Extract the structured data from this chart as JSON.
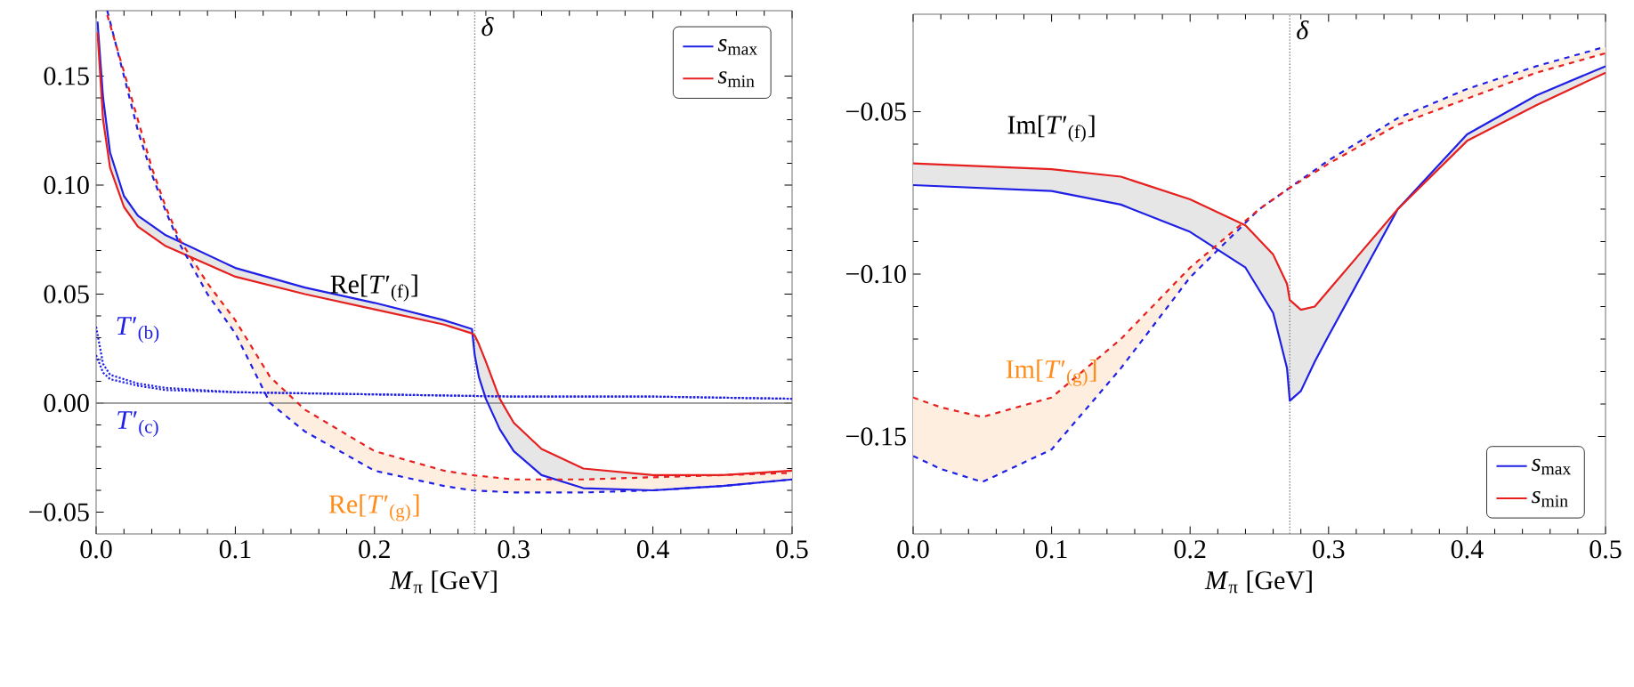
{
  "chart_data": [
    {
      "type": "line",
      "xlabel": "*M*$_{π}$ [GeV]",
      "xlim": [
        0,
        0.5
      ],
      "ylim": [
        -0.06,
        0.18
      ],
      "xticks": [
        {
          "value": 0,
          "label": "0.0"
        },
        0.1,
        0.2,
        0.3,
        0.4,
        0.5
      ],
      "yticks": [
        {
          "value": -0.05,
          "label": "−0.05"
        },
        {
          "value": 0,
          "label": "0.00"
        },
        0.05,
        {
          "value": 0.1,
          "label": "0.10"
        },
        0.15
      ],
      "legend": "top right",
      "grid": false,
      "series": [
        {
          "name": "*s*$_{max}$",
          "color": "#1f1fe6",
          "line_style": "solid",
          "x": [
            0.001,
            0.005,
            0.01,
            0.02,
            0.03,
            0.05,
            0.1,
            0.15,
            0.2,
            0.25,
            0.27,
            0.272,
            0.275,
            0.28,
            0.29,
            0.3,
            0.32,
            0.35,
            0.4,
            0.45,
            0.5
          ],
          "values": [
            0.175,
            0.14,
            0.115,
            0.095,
            0.086,
            0.077,
            0.062,
            0.053,
            0.046,
            0.038,
            0.034,
            0.022,
            0.012,
            0.002,
            -0.012,
            -0.022,
            -0.033,
            -0.039,
            -0.04,
            -0.038,
            -0.035
          ],
          "upper": [
            0.175,
            0.14,
            0.115,
            0.095,
            0.086,
            0.077,
            0.062,
            0.053,
            0.046,
            0.038,
            0.034,
            0.031,
            0.027,
            0.019,
            0.002,
            -0.009,
            -0.021,
            -0.03,
            -0.033,
            -0.033,
            -0.031
          ],
          "lower": [
            0.17,
            0.13,
            0.108,
            0.09,
            0.081,
            0.072,
            0.058,
            0.05,
            0.043,
            0.036,
            0.032,
            0.022,
            0.012,
            0.002,
            -0.012,
            -0.022,
            -0.033,
            -0.039,
            -0.04,
            -0.038,
            -0.035
          ]
        },
        {
          "name": "*s*$_{min}$",
          "color": "#e61f1f",
          "line_style": "solid",
          "x": [
            0.001,
            0.005,
            0.01,
            0.02,
            0.03,
            0.05,
            0.1,
            0.15,
            0.2,
            0.25,
            0.27,
            0.272,
            0.275,
            0.28,
            0.29,
            0.3,
            0.32,
            0.35,
            0.4,
            0.45,
            0.5
          ],
          "values": [
            0.17,
            0.13,
            0.108,
            0.09,
            0.081,
            0.072,
            0.058,
            0.05,
            0.043,
            0.036,
            0.032,
            0.031,
            0.027,
            0.019,
            0.002,
            -0.009,
            -0.021,
            -0.03,
            -0.033,
            -0.033,
            -0.031
          ]
        },
        {
          "color": "#1f1fe6",
          "line_style": "dashed",
          "x": [
            0.008,
            0.02,
            0.03,
            0.04,
            0.05,
            0.06,
            0.08,
            0.1,
            0.125,
            0.15,
            0.2,
            0.25,
            0.27,
            0.3,
            0.35,
            0.4,
            0.45,
            0.5
          ],
          "values": [
            0.18,
            0.15,
            0.125,
            0.105,
            0.088,
            0.073,
            0.05,
            0.032,
            0.0,
            -0.013,
            -0.031,
            -0.038,
            -0.04,
            -0.041,
            -0.041,
            -0.04,
            -0.038,
            -0.035
          ],
          "upper": [
            0.178,
            0.152,
            0.13,
            0.108,
            0.09,
            0.075,
            0.055,
            0.038,
            0.012,
            -0.003,
            -0.022,
            -0.031,
            -0.033,
            -0.035,
            -0.035,
            -0.034,
            -0.033,
            -0.032
          ],
          "lower": [
            0.18,
            0.15,
            0.125,
            0.105,
            0.088,
            0.073,
            0.05,
            0.032,
            0.0,
            -0.013,
            -0.031,
            -0.038,
            -0.04,
            -0.041,
            -0.041,
            -0.04,
            -0.038,
            -0.035
          ]
        },
        {
          "color": "#e61f1f",
          "line_style": "dashed",
          "x": [
            0.008,
            0.02,
            0.03,
            0.04,
            0.05,
            0.06,
            0.08,
            0.1,
            0.125,
            0.15,
            0.2,
            0.25,
            0.27,
            0.3,
            0.35,
            0.4,
            0.45,
            0.5
          ],
          "values": [
            0.178,
            0.152,
            0.13,
            0.108,
            0.09,
            0.075,
            0.055,
            0.038,
            0.012,
            -0.003,
            -0.022,
            -0.031,
            -0.033,
            -0.035,
            -0.035,
            -0.034,
            -0.033,
            -0.032
          ]
        },
        {
          "color": "#1f1fe6",
          "line_style": "dotted",
          "x": [
            0.0,
            0.005,
            0.01,
            0.03,
            0.05,
            0.1,
            0.2,
            0.3,
            0.4,
            0.5
          ],
          "values": [
            0.035,
            0.018,
            0.013,
            0.009,
            0.007,
            0.005,
            0.004,
            0.003,
            0.003,
            0.002
          ]
        },
        {
          "color": "#1f1fe6",
          "line_style": "dotted",
          "x": [
            0.0,
            0.005,
            0.01,
            0.03,
            0.05,
            0.1,
            0.2,
            0.3,
            0.4,
            0.5
          ],
          "values": [
            0.022,
            0.014,
            0.011,
            0.008,
            0.006,
            0.005,
            0.004,
            0.003,
            0.003,
            0.002
          ]
        }
      ],
      "ref_lines": [
        {
          "axis": "y",
          "value": 0,
          "color": "#808080",
          "line_style": "solid"
        },
        {
          "axis": "x",
          "value": 0.272,
          "label": "*δ*",
          "color": "#808080",
          "line_style": "dotted"
        }
      ],
      "annotations": [
        "Re[*T*′$_{(f)}$]",
        "Re[*T*′$_{(g)}$]",
        "*T*′$_{(b)}$",
        "*T*′$_{(c)}$"
      ]
    },
    {
      "type": "line",
      "xlabel": "*M*$_{π}$ [GeV]",
      "xlim": [
        0,
        0.5
      ],
      "ylim": [
        -0.18,
        -0.02
      ],
      "xticks": [
        {
          "value": 0,
          "label": "0.0"
        },
        0.1,
        0.2,
        0.3,
        0.4,
        0.5
      ],
      "yticks": [
        {
          "value": -0.15,
          "label": "−0.15"
        },
        {
          "value": -0.1,
          "label": "−0.10"
        },
        {
          "value": -0.05,
          "label": "−0.05"
        }
      ],
      "legend": "bottom right",
      "grid": false,
      "series": [
        {
          "name": "*s*$_{max}$",
          "color": "#1f1fe6",
          "line_style": "solid",
          "x": [
            0.0,
            0.1,
            0.15,
            0.2,
            0.24,
            0.26,
            0.27,
            0.272,
            0.28,
            0.29,
            0.3,
            0.35,
            0.4,
            0.45,
            0.5
          ],
          "values": [
            -0.0726,
            -0.0744,
            -0.0786,
            -0.087,
            -0.098,
            -0.112,
            -0.129,
            -0.139,
            -0.136,
            -0.127,
            -0.119,
            -0.08,
            -0.057,
            -0.045,
            -0.036
          ],
          "upper": [
            -0.0659,
            -0.0677,
            -0.07,
            -0.077,
            -0.085,
            -0.094,
            -0.103,
            -0.108,
            -0.111,
            -0.11,
            -0.105,
            -0.08,
            -0.059,
            -0.048,
            -0.038
          ],
          "lower": [
            -0.0726,
            -0.0744,
            -0.0786,
            -0.087,
            -0.098,
            -0.112,
            -0.129,
            -0.139,
            -0.136,
            -0.127,
            -0.119,
            -0.08,
            -0.057,
            -0.045,
            -0.036
          ]
        },
        {
          "name": "*s*$_{min}$",
          "color": "#e61f1f",
          "line_style": "solid",
          "x": [
            0.0,
            0.1,
            0.15,
            0.2,
            0.24,
            0.26,
            0.27,
            0.272,
            0.28,
            0.29,
            0.3,
            0.35,
            0.4,
            0.45,
            0.5
          ],
          "values": [
            -0.0659,
            -0.0677,
            -0.07,
            -0.077,
            -0.085,
            -0.094,
            -0.103,
            -0.108,
            -0.111,
            -0.11,
            -0.105,
            -0.08,
            -0.059,
            -0.048,
            -0.038
          ]
        },
        {
          "color": "#1f1fe6",
          "line_style": "dashed",
          "x": [
            0.0,
            0.02,
            0.05,
            0.1,
            0.15,
            0.2,
            0.25,
            0.27,
            0.3,
            0.35,
            0.4,
            0.45,
            0.5
          ],
          "values": [
            -0.156,
            -0.16,
            -0.164,
            -0.154,
            -0.129,
            -0.101,
            -0.08,
            -0.074,
            -0.065,
            -0.052,
            -0.043,
            -0.036,
            -0.03
          ],
          "upper": [
            -0.138,
            -0.141,
            -0.144,
            -0.138,
            -0.12,
            -0.098,
            -0.08,
            -0.074,
            -0.066,
            -0.054,
            -0.046,
            -0.038,
            -0.032
          ],
          "lower": [
            -0.156,
            -0.16,
            -0.164,
            -0.154,
            -0.129,
            -0.101,
            -0.08,
            -0.074,
            -0.065,
            -0.052,
            -0.043,
            -0.036,
            -0.03
          ]
        },
        {
          "color": "#e61f1f",
          "line_style": "dashed",
          "x": [
            0.0,
            0.02,
            0.05,
            0.1,
            0.15,
            0.2,
            0.25,
            0.27,
            0.3,
            0.35,
            0.4,
            0.45,
            0.5
          ],
          "values": [
            -0.138,
            -0.141,
            -0.144,
            -0.138,
            -0.12,
            -0.098,
            -0.08,
            -0.074,
            -0.066,
            -0.054,
            -0.046,
            -0.038,
            -0.032
          ]
        }
      ],
      "ref_lines": [
        {
          "axis": "x",
          "value": 0.272,
          "label": "*δ*",
          "color": "#808080",
          "line_style": "dotted"
        }
      ],
      "annotations": [
        "Im[*T*′$_{(f)}$]",
        "Im[*T*′$_{(g)}$]"
      ]
    }
  ]
}
